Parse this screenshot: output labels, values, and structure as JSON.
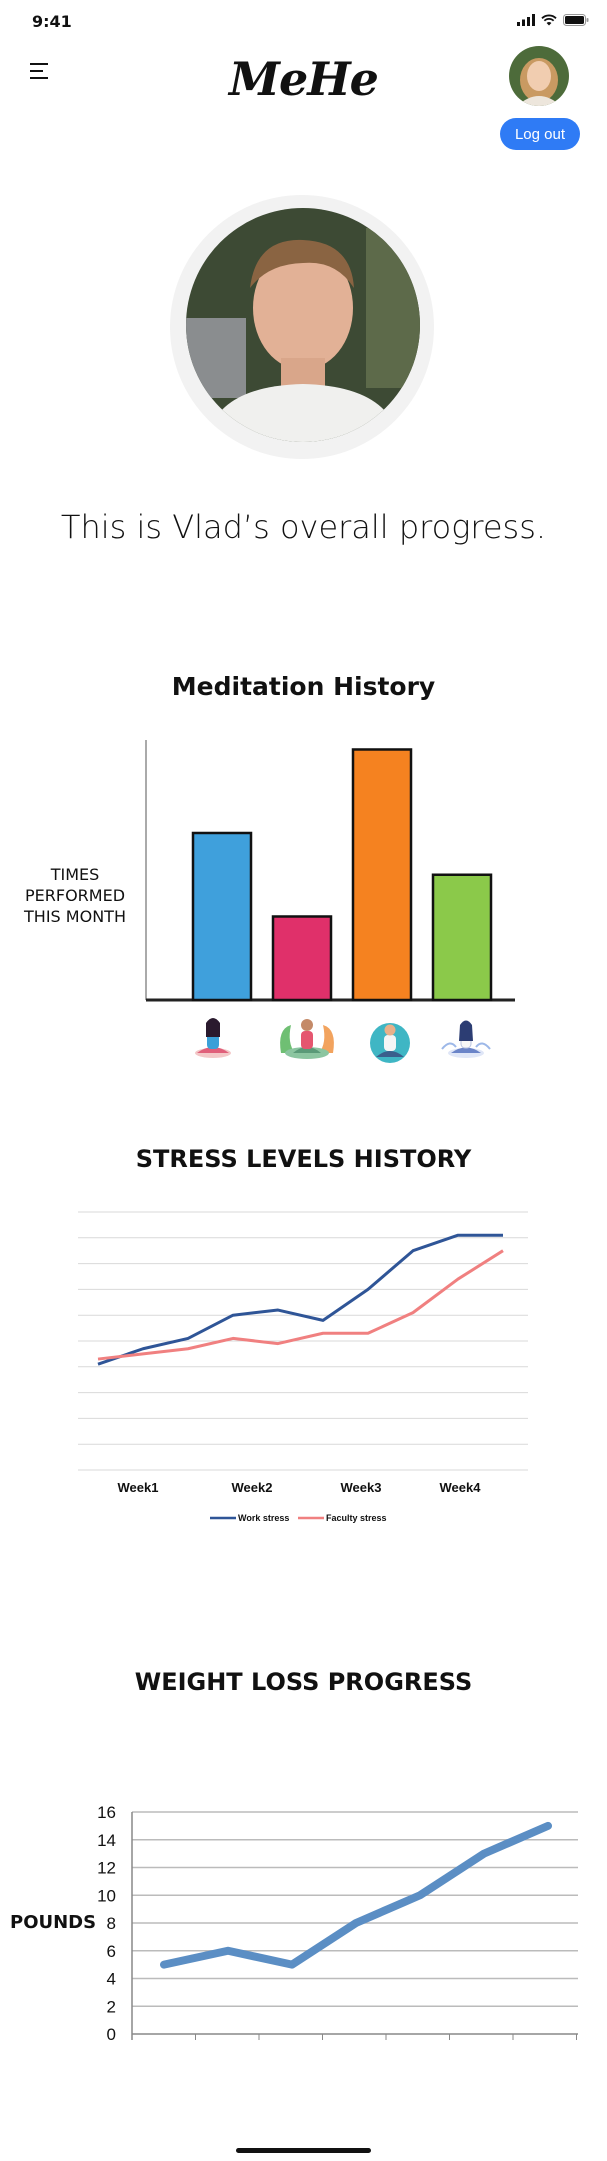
{
  "status_bar": {
    "time": "9:41"
  },
  "header": {
    "app_name": "MeHe",
    "logout_label": "Log out"
  },
  "profile": {
    "progress_text": "This is Vlad’s overall progress."
  },
  "meditation": {
    "title": "Meditation History",
    "ylabel": "TIMES PERFORMED THIS MONTH",
    "chart_data": {
      "type": "bar",
      "title": "Meditation History",
      "ylabel": "TIMES PERFORMED THIS MONTH",
      "categories": [
        "meditation-woman-1",
        "meditation-woman-plants",
        "meditation-man",
        "meditation-woman-2"
      ],
      "values": [
        6,
        3,
        9,
        4.5
      ],
      "ylim": [
        0,
        9.7
      ],
      "colors": [
        "#3fa0dc",
        "#e0306a",
        "#f58220",
        "#8bc94a"
      ],
      "grid": false
    }
  },
  "stress": {
    "title": "STRESS LEVELS HISTORY",
    "chart_data": {
      "type": "line",
      "title": "STRESS LEVELS HISTORY",
      "x": [
        1,
        1.5,
        2,
        2.5,
        3,
        3.5,
        4,
        4.5,
        5,
        5.5
      ],
      "tick_labels": [
        "Week1",
        "Week2",
        "Week3",
        "Week4"
      ],
      "ylim": [
        0,
        10
      ],
      "grid": true,
      "legend_position": "bottom",
      "series": [
        {
          "name": "Work stress",
          "color": "#2f5597",
          "values": [
            4.1,
            4.7,
            5.1,
            6.0,
            6.2,
            5.8,
            7.0,
            8.5,
            9.1,
            9.1
          ]
        },
        {
          "name": "Faculty stress",
          "color": "#f08080",
          "values": [
            4.3,
            4.5,
            4.7,
            5.1,
            4.9,
            5.3,
            5.3,
            6.1,
            7.4,
            8.5
          ]
        }
      ]
    }
  },
  "weight": {
    "title": "WEIGHT LOSS PROGRESS",
    "ylabel": "POUNDS",
    "chart_data": {
      "type": "line",
      "title": "WEIGHT LOSS PROGRESS",
      "ylabel": "POUNDS",
      "x": [
        1,
        2,
        3,
        4,
        5,
        6,
        7
      ],
      "y_ticks": [
        "0",
        "2",
        "4",
        "6",
        "8",
        "10",
        "12",
        "14",
        "16"
      ],
      "ylim": [
        0,
        16
      ],
      "grid": true,
      "series": [
        {
          "color": "#5b8ec4",
          "values": [
            5,
            6,
            5,
            8,
            10,
            13,
            15
          ]
        }
      ]
    }
  }
}
